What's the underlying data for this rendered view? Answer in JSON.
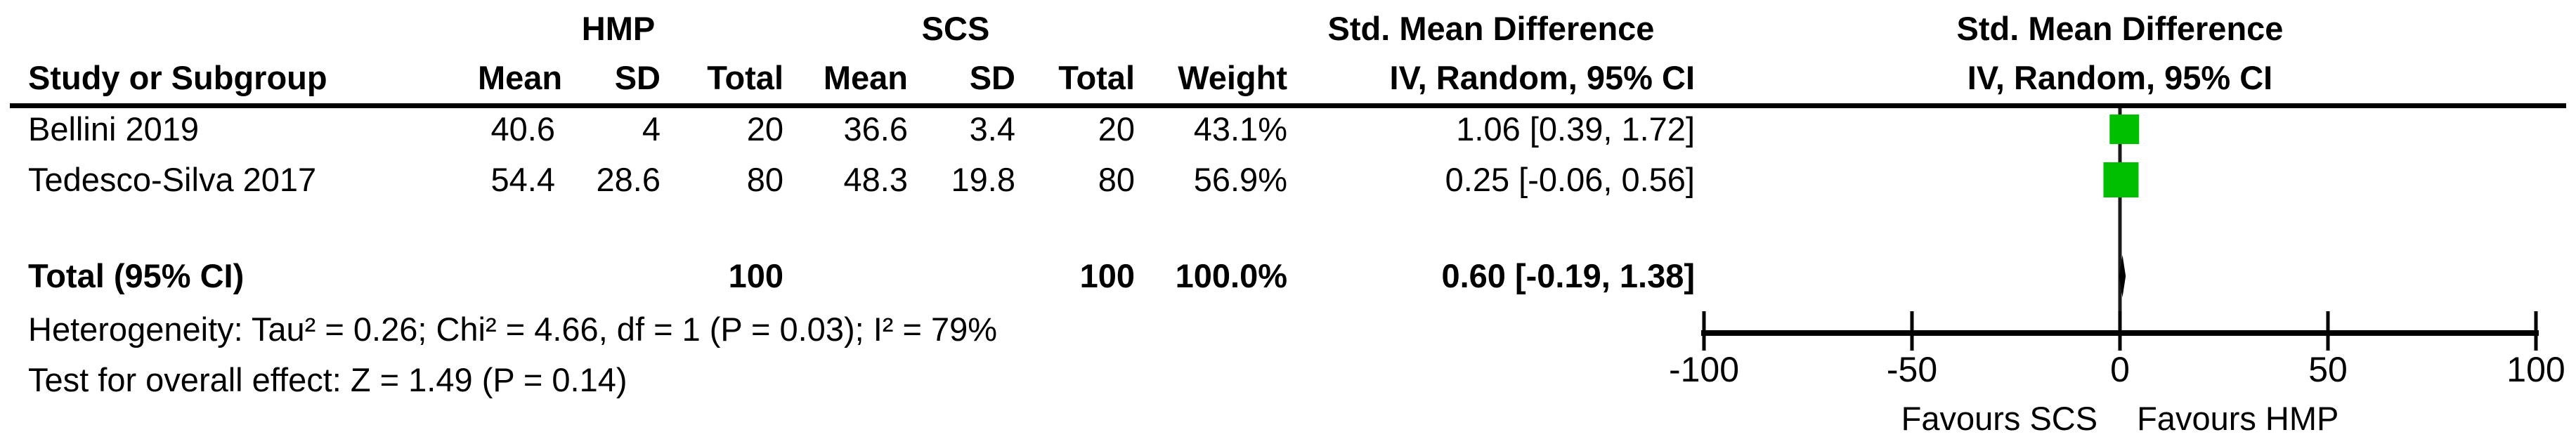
{
  "table": {
    "header": {
      "group1": "HMP",
      "group2": "SCS",
      "effect_line1": "Std. Mean Difference",
      "study_col": "Study or Subgroup",
      "mean1": "Mean",
      "sd1": "SD",
      "total1": "Total",
      "mean2": "Mean",
      "sd2": "SD",
      "total2": "Total",
      "weight": "Weight",
      "effect_line2": "IV, Random, 95% CI"
    },
    "plot_header": {
      "line1": "Std. Mean Difference",
      "line2": "IV, Random, 95% CI"
    },
    "rows": [
      {
        "study": "Bellini 2019",
        "mean1": "40.6",
        "sd1": "4",
        "total1": "20",
        "mean2": "36.6",
        "sd2": "3.4",
        "total2": "20",
        "weight": "43.1%",
        "ci": "1.06 [0.39, 1.72]"
      },
      {
        "study": "Tedesco-Silva 2017",
        "mean1": "54.4",
        "sd1": "28.6",
        "total1": "80",
        "mean2": "48.3",
        "sd2": "19.8",
        "total2": "80",
        "weight": "56.9%",
        "ci": "0.25 [-0.06, 0.56]"
      }
    ],
    "total_row": {
      "label": "Total (95% CI)",
      "total1": "100",
      "total2": "100",
      "weight": "100.0%",
      "ci": "0.60 [-0.19, 1.38]"
    },
    "footer": {
      "heterogeneity": "Heterogeneity: Tau² = 0.26; Chi² = 4.66, df = 1 (P = 0.03); I² = 79%",
      "overall_effect": "Test for overall effect: Z = 1.49 (P = 0.14)"
    }
  },
  "chart_data": {
    "type": "scatter",
    "subtype": "forest-plot",
    "title": "",
    "x_axis": {
      "range": [
        -100,
        100
      ],
      "ticks": [
        -100,
        -50,
        0,
        50,
        100
      ],
      "zero_line": 0
    },
    "points": [
      {
        "label": "Bellini 2019",
        "smd": 1.06,
        "ci_low": 0.39,
        "ci_high": 1.72,
        "weight_pct": 43.1
      },
      {
        "label": "Tedesco-Silva 2017",
        "smd": 0.25,
        "ci_low": -0.06,
        "ci_high": 0.56,
        "weight_pct": 56.9
      }
    ],
    "total": {
      "label": "Total (95% CI)",
      "smd": 0.6,
      "ci_low": -0.19,
      "ci_high": 1.38
    },
    "footer_labels": {
      "left": "Favours SCS",
      "right": "Favours HMP"
    },
    "colors": {
      "marker": "#00bf00",
      "diamond": "#000000",
      "axis": "#000000",
      "zero_line": "#1a1a1a"
    }
  }
}
